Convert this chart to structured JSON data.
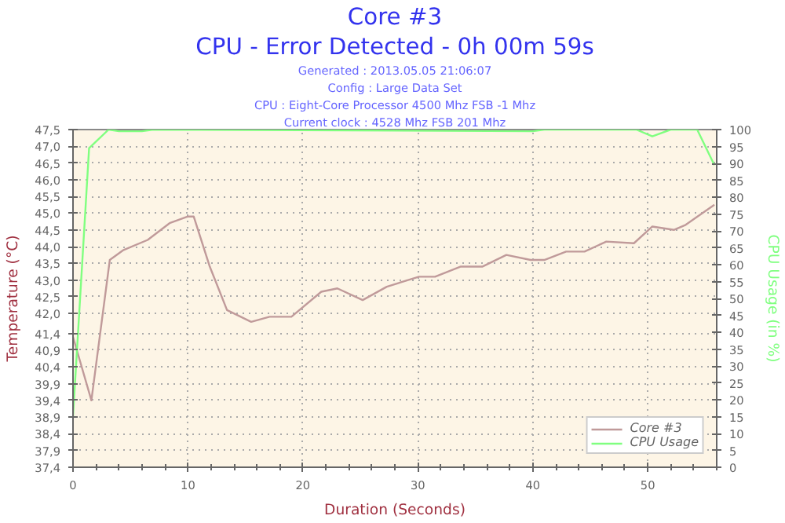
{
  "chart_data": {
    "type": "line",
    "title": "Core #3",
    "subtitle": "CPU - Error Detected - 0h 00m 59s",
    "annotations": [
      "Generated : 2013.05.05 21:06:07",
      "Config : Large Data Set",
      "CPU : Eight-Core Processor 4500 Mhz FSB -1 Mhz",
      "Current clock : 4528 Mhz FSB 201 Mhz"
    ],
    "xlabel": "Duration (Seconds)",
    "ylabel": "Temperature (°C)",
    "y2label": "CPU Usage (in %)",
    "xlim": [
      0,
      56
    ],
    "xticks": [
      0,
      10,
      20,
      30,
      40,
      50
    ],
    "ylim": [
      37.4,
      47.5
    ],
    "yticks": [
      {
        "value": 37.4,
        "label": "37,4"
      },
      {
        "value": 37.9,
        "label": "37,9"
      },
      {
        "value": 38.4,
        "label": "38,4"
      },
      {
        "value": 38.9,
        "label": "38,9"
      },
      {
        "value": 39.4,
        "label": "39,4"
      },
      {
        "value": 39.9,
        "label": "39,9"
      },
      {
        "value": 40.4,
        "label": "40,4"
      },
      {
        "value": 40.9,
        "label": "40,9"
      },
      {
        "value": 41.4,
        "label": "41,4"
      },
      {
        "value": 42.0,
        "label": "42,0"
      },
      {
        "value": 42.5,
        "label": "42,5"
      },
      {
        "value": 43.0,
        "label": "43,0"
      },
      {
        "value": 43.5,
        "label": "43,5"
      },
      {
        "value": 44.0,
        "label": "44,0"
      },
      {
        "value": 44.5,
        "label": "44,5"
      },
      {
        "value": 45.0,
        "label": "45,0"
      },
      {
        "value": 45.5,
        "label": "45,5"
      },
      {
        "value": 46.0,
        "label": "46,0"
      },
      {
        "value": 46.5,
        "label": "46,5"
      },
      {
        "value": 47.0,
        "label": "47,0"
      },
      {
        "value": 47.5,
        "label": "47,5"
      }
    ],
    "y2lim": [
      0,
      100
    ],
    "y2ticks": [
      0,
      5,
      10,
      15,
      20,
      25,
      30,
      35,
      40,
      45,
      50,
      55,
      60,
      65,
      70,
      75,
      80,
      85,
      90,
      95,
      100
    ],
    "grid": true,
    "legend": "bottom right",
    "line_style": "solid",
    "series": [
      {
        "name": "Core #3",
        "color": "#c09a9a",
        "x": [
          0,
          1.6,
          3.2,
          4.4,
          6.5,
          8.4,
          10.0,
          10.5,
          11.9,
          13.4,
          15.5,
          17.1,
          19.0,
          21.6,
          23.0,
          25.2,
          27.3,
          30.1,
          31.5,
          33.7,
          35.6,
          37.7,
          39.8,
          41.0,
          42.9,
          44.5,
          46.4,
          48.8,
          50.4,
          52.3,
          53.3,
          55.8
        ],
        "values": [
          41.3,
          39.4,
          43.6,
          43.9,
          44.2,
          44.7,
          44.9,
          44.9,
          43.4,
          42.1,
          41.75,
          41.9,
          41.9,
          42.65,
          42.75,
          42.4,
          42.8,
          43.1,
          43.1,
          43.4,
          43.4,
          43.75,
          43.6,
          43.6,
          43.85,
          43.85,
          44.15,
          44.1,
          44.6,
          44.5,
          44.65,
          45.25
        ]
      },
      {
        "name": "CPU Usage",
        "color": "#80ff80",
        "axis": "y2",
        "x": [
          0,
          1.4,
          3.1,
          4,
          6,
          7,
          40,
          41,
          49,
          50.4,
          52,
          54.3,
          55.8
        ],
        "values": [
          15,
          94.5,
          100,
          99.5,
          99.5,
          100,
          99.5,
          100,
          100,
          98,
          100,
          100,
          89.5
        ]
      }
    ]
  }
}
